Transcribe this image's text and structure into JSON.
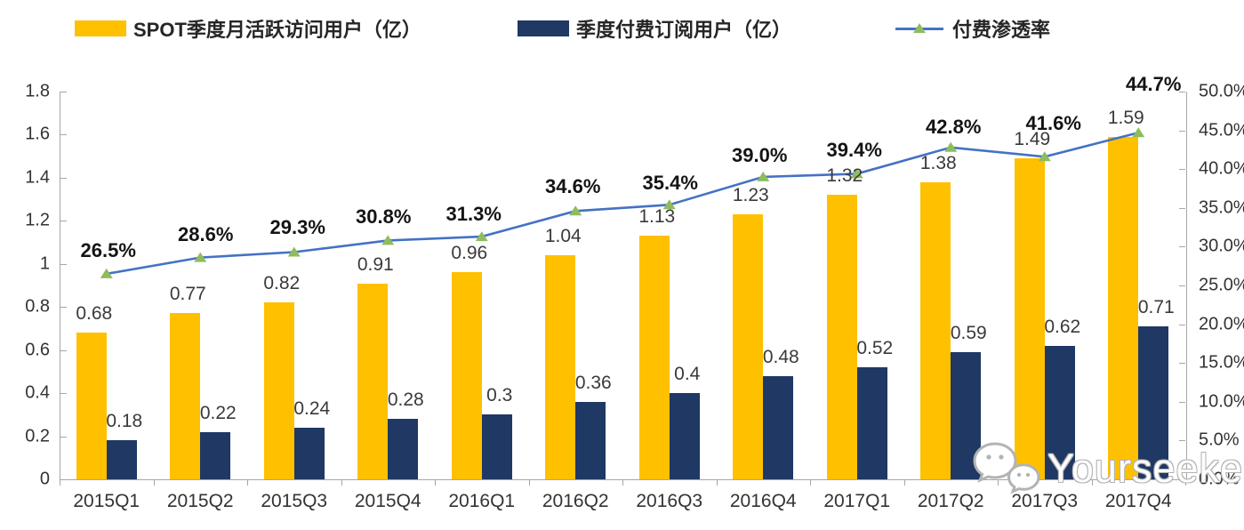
{
  "legend": {
    "items": [
      {
        "label": "SPOT季度月活跃访问用户（亿）",
        "swatch": "bar",
        "color": "#FFC000"
      },
      {
        "label": "季度付费订阅用户（亿）",
        "swatch": "bar",
        "color": "#1F3864"
      },
      {
        "label": "付费渗透率",
        "swatch": "line-triangle-marker",
        "line_color": "#4472C4",
        "marker_color": "#8FBC5C"
      }
    ]
  },
  "chart_data": {
    "type": "bar",
    "subtype": "combo bar+line, dual axis",
    "title": "",
    "categories": [
      "2015Q1",
      "2015Q2",
      "2015Q3",
      "2015Q4",
      "2016Q1",
      "2016Q2",
      "2016Q3",
      "2016Q4",
      "2017Q1",
      "2017Q2",
      "2017Q3",
      "2017Q4"
    ],
    "series": [
      {
        "name": "SPOT季度月活跃访问用户（亿）",
        "type": "bar",
        "axis": "left",
        "color": "#FFC000",
        "values": [
          0.68,
          0.77,
          0.82,
          0.91,
          0.96,
          1.04,
          1.13,
          1.23,
          1.32,
          1.38,
          1.49,
          1.59
        ],
        "labels": [
          "0.68",
          "0.77",
          "0.82",
          "0.91",
          "0.96",
          "1.04",
          "1.13",
          "1.23",
          "1.32",
          "1.38",
          "1.49",
          "1.59"
        ]
      },
      {
        "name": "季度付费订阅用户（亿）",
        "type": "bar",
        "axis": "left",
        "color": "#1F3864",
        "values": [
          0.18,
          0.22,
          0.24,
          0.28,
          0.3,
          0.36,
          0.4,
          0.48,
          0.52,
          0.59,
          0.62,
          0.71
        ],
        "labels": [
          "0.18",
          "0.22",
          "0.24",
          "0.28",
          "0.3",
          "0.36",
          "0.4",
          "0.48",
          "0.52",
          "0.59",
          "0.62",
          "0.71"
        ]
      },
      {
        "name": "付费渗透率",
        "type": "line",
        "axis": "right",
        "color": "#4472C4",
        "marker": "triangle",
        "marker_color": "#8FBC5C",
        "values": [
          26.5,
          28.6,
          29.3,
          30.8,
          31.3,
          34.6,
          35.4,
          39.0,
          39.4,
          42.8,
          41.6,
          44.7
        ],
        "labels": [
          "26.5%",
          "28.6%",
          "29.3%",
          "30.8%",
          "31.3%",
          "34.6%",
          "35.4%",
          "39.0%",
          "39.4%",
          "42.8%",
          "41.6%",
          "44.7%"
        ]
      }
    ],
    "left_axis": {
      "min": 0,
      "max": 1.8,
      "step": 0.2,
      "tick_labels": [
        "1.8",
        "1.6",
        "1.4",
        "1.2",
        "1",
        "0.8",
        "0.6",
        "0.4",
        "0.2",
        "0"
      ]
    },
    "right_axis": {
      "min": 0,
      "max": 50,
      "step": 5,
      "tick_labels": [
        "50.0%",
        "45.0%",
        "40.0%",
        "35.0%",
        "30.0%",
        "25.0%",
        "20.0%",
        "15.0%",
        "10.0%",
        "5.0%",
        "0.0%"
      ]
    },
    "grid": false,
    "legend_position": "top",
    "xlabel": "",
    "ylabel": ""
  },
  "watermark": {
    "text": "Yourseeker",
    "icon": "wechat-icon"
  }
}
